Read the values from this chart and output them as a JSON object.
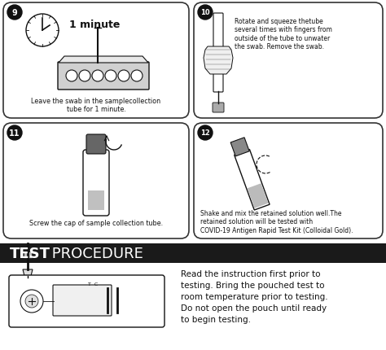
{
  "bg_color": "#ffffff",
  "border_color": "#333333",
  "black": "#111111",
  "gray": "#888888",
  "light_gray": "#cccccc",
  "step9_num": "9",
  "step9_time": "1 minute",
  "step9_text": "Leave the swab in the samplecollection\ntube for 1 minute.",
  "step10_num": "10",
  "step10_text": "Rotate and squeeze thetube\nseveral times with fingers from\noutside of the tube to unwater\nthe swab. Remove the swab.",
  "step11_num": "11",
  "step11_text": "Screw the cap of sample collection tube.",
  "step12_num": "12",
  "step12_text": "Shake and mix the retained solution well.The\nretained solution will be tested with\nCOVID-19 Antigen Rapid Test Kit (Colloidal Gold).",
  "banner_bg": "#1a1a1a",
  "banner_text_bold": "TEST",
  "banner_text_regular": " PROCEDURE",
  "banner_text_color": "#ffffff",
  "procedure_line1": "Read the instruction first prior to",
  "procedure_line2": "testing. Bring the pouched test to",
  "procedure_line3": "room temperature prior to testing.",
  "procedure_line4": "Do not open the pouch until ready",
  "procedure_line5": "to begin testing.",
  "fig_width": 4.74,
  "fig_height": 4.31
}
